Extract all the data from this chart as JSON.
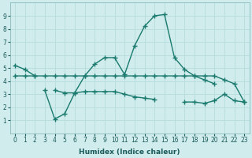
{
  "xlabel": "Humidex (Indice chaleur)",
  "x": [
    0,
    1,
    2,
    3,
    4,
    5,
    6,
    7,
    8,
    9,
    10,
    11,
    12,
    13,
    14,
    15,
    16,
    17,
    18,
    19,
    20,
    21,
    22,
    23
  ],
  "series": [
    [
      5.2,
      4.9,
      4.4,
      null,
      3.3,
      3.1,
      3.1,
      4.4,
      5.3,
      5.8,
      5.8,
      4.5,
      6.7,
      8.2,
      9.0,
      9.1,
      5.8,
      4.9,
      4.4,
      4.1,
      3.8,
      null,
      null,
      null
    ],
    [
      4.4,
      4.4,
      4.4,
      4.4,
      4.4,
      4.4,
      4.4,
      4.4,
      4.4,
      4.4,
      4.4,
      4.4,
      4.4,
      4.4,
      4.4,
      4.4,
      4.4,
      4.4,
      4.4,
      4.4,
      4.4,
      4.1,
      3.8,
      2.4
    ],
    [
      null,
      null,
      null,
      3.3,
      1.1,
      1.5,
      3.1,
      3.2,
      3.2,
      3.2,
      3.2,
      3.0,
      2.8,
      2.7,
      2.6,
      null,
      null,
      2.4,
      2.4,
      2.3,
      2.5,
      3.0,
      2.5,
      2.4
    ]
  ],
  "line_color": "#1a7a6e",
  "bg_color": "#d0ecec",
  "grid_color": "#b8dede",
  "ylim": [
    0,
    10
  ],
  "xlim_min": -0.5,
  "xlim_max": 23.5,
  "yticks": [
    1,
    2,
    3,
    4,
    5,
    6,
    7,
    8,
    9
  ],
  "xticks": [
    0,
    1,
    2,
    3,
    4,
    5,
    6,
    7,
    8,
    9,
    10,
    11,
    12,
    13,
    14,
    15,
    16,
    17,
    18,
    19,
    20,
    21,
    22,
    23
  ],
  "xlabel_fontsize": 6.5,
  "tick_fontsize": 5.5,
  "marker": "+",
  "markersize": 4,
  "linewidth": 1.0
}
